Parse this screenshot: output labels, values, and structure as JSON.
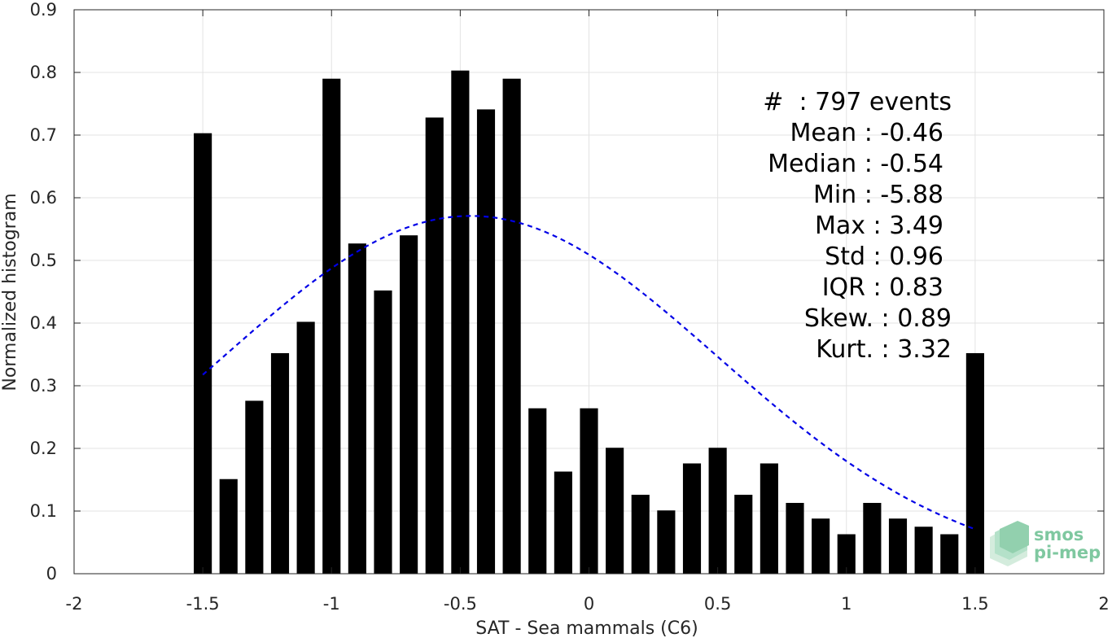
{
  "chart_data": {
    "type": "bar",
    "title": "",
    "xlabel": "SAT - Sea mammals (C6)",
    "ylabel": "Normalized histogram",
    "xlim": [
      -2,
      2
    ],
    "ylim": [
      0,
      0.9
    ],
    "grid": true,
    "x_ticks": [
      "-2",
      "-1.5",
      "-1",
      "-0.5",
      "0",
      "0.5",
      "1",
      "1.5",
      "2"
    ],
    "y_ticks": [
      "0",
      "0.1",
      "0.2",
      "0.3",
      "0.4",
      "0.5",
      "0.6",
      "0.7",
      "0.8",
      "0.9"
    ],
    "bar_color": "#000000",
    "bin_width": 0.1,
    "x": [
      -1.5,
      -1.4,
      -1.3,
      -1.2,
      -1.1,
      -1.0,
      -0.9,
      -0.8,
      -0.7,
      -0.6,
      -0.5,
      -0.4,
      -0.3,
      -0.2,
      -0.1,
      0.0,
      0.1,
      0.2,
      0.3,
      0.4,
      0.5,
      0.6,
      0.7,
      0.8,
      0.9,
      1.0,
      1.1,
      1.2,
      1.3,
      1.4,
      1.5
    ],
    "values": [
      0.703,
      0.151,
      0.276,
      0.352,
      0.402,
      0.79,
      0.527,
      0.452,
      0.54,
      0.728,
      0.803,
      0.741,
      0.79,
      0.264,
      0.163,
      0.264,
      0.201,
      0.126,
      0.101,
      0.176,
      0.201,
      0.126,
      0.176,
      0.113,
      0.088,
      0.063,
      0.113,
      0.088,
      0.075,
      0.063,
      0.352
    ],
    "fit_curve": {
      "type": "normal",
      "mean": -0.46,
      "std": 0.96,
      "peak": 0.571,
      "x_range": [
        -1.5,
        1.5
      ],
      "color": "#0000e6",
      "style": "dashed"
    },
    "annotations": [
      "#  : 797 events",
      "Mean : -0.46",
      "Median : -0.54",
      "Min : -5.88",
      "Max : 3.49",
      "Std : 0.96",
      "IQR : 0.83",
      "Skew. : 0.89",
      "Kurt. : 3.32"
    ]
  },
  "logo": {
    "line1": "smos",
    "line2": "pi-mep",
    "color": "#7fc8a0"
  }
}
